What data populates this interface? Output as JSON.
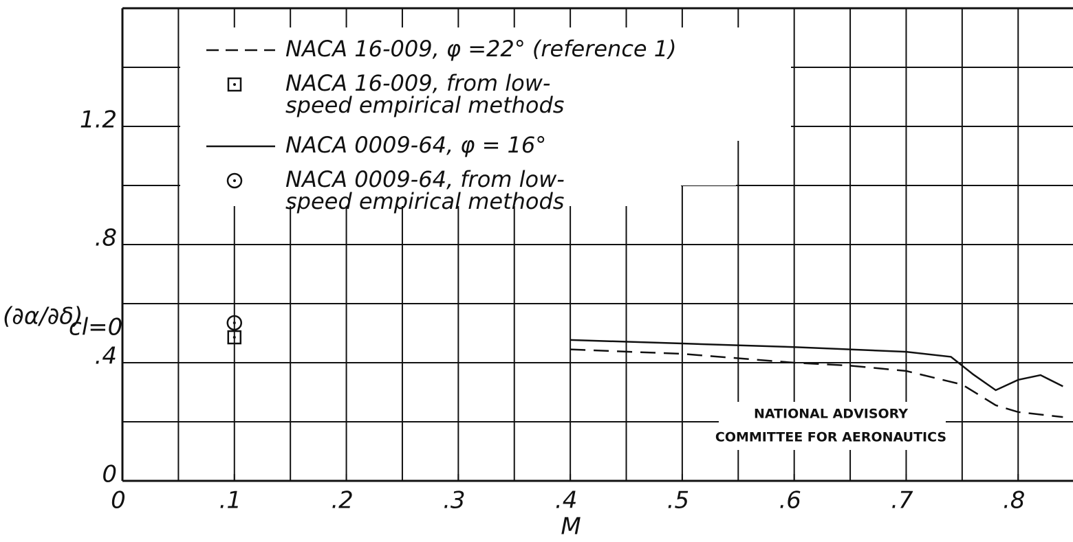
{
  "chart_data": {
    "type": "line",
    "x_label": "M",
    "y_label": "(∂α/∂δ)",
    "y_label_subscript": "cl=0",
    "xlim": [
      0,
      0.849
    ],
    "ylim": [
      0,
      1.6
    ],
    "xticks": [
      {
        "value": 0,
        "label": "0"
      },
      {
        "value": 0.1,
        "label": ".1"
      },
      {
        "value": 0.2,
        "label": ".2"
      },
      {
        "value": 0.3,
        "label": ".3"
      },
      {
        "value": 0.4,
        "label": ".4"
      },
      {
        "value": 0.5,
        "label": ".5"
      },
      {
        "value": 0.6,
        "label": ".6"
      },
      {
        "value": 0.7,
        "label": ".7"
      },
      {
        "value": 0.8,
        "label": ".8"
      }
    ],
    "yticks": [
      {
        "value": 0,
        "label": "0"
      },
      {
        "value": 0.4,
        "label": ".4"
      },
      {
        "value": 0.8,
        "label": ".8"
      },
      {
        "value": 1.2,
        "label": "1.2"
      }
    ],
    "xgrid": [
      0.05,
      0.1,
      0.15,
      0.2,
      0.25,
      0.3,
      0.35,
      0.4,
      0.45,
      0.5,
      0.55,
      0.6,
      0.65,
      0.7,
      0.75,
      0.8
    ],
    "ygrid": [
      0.2,
      0.4,
      0.6,
      0.8,
      1.0,
      1.2,
      1.4
    ],
    "grid": true,
    "color": "#111111",
    "series": [
      {
        "name": "NACA 16-009, φ =22° (reference 1)",
        "style": "dashed",
        "x": [
          0.4,
          0.5,
          0.6,
          0.65,
          0.7,
          0.75,
          0.78,
          0.8,
          0.84
        ],
        "values": [
          0.445,
          0.43,
          0.4,
          0.39,
          0.372,
          0.326,
          0.256,
          0.233,
          0.216
        ]
      },
      {
        "name": "NACA 16-009, from low-speed empirical methods",
        "style": "square",
        "x": [
          0.1
        ],
        "values": [
          0.486
        ]
      },
      {
        "name": "NACA 0009-64, φ = 16°",
        "style": "solid",
        "x": [
          0.4,
          0.5,
          0.6,
          0.7,
          0.74,
          0.76,
          0.78,
          0.8,
          0.82,
          0.84
        ],
        "values": [
          0.477,
          0.465,
          0.453,
          0.437,
          0.42,
          0.36,
          0.307,
          0.342,
          0.358,
          0.32
        ]
      },
      {
        "name": "NACA 0009-64, from low-speed empirical methods",
        "style": "circle",
        "x": [
          0.1
        ],
        "values": [
          0.535
        ]
      }
    ],
    "annotation": [
      "NATIONAL ADVISORY",
      "COMMITTEE FOR AERONAUTICS"
    ]
  }
}
